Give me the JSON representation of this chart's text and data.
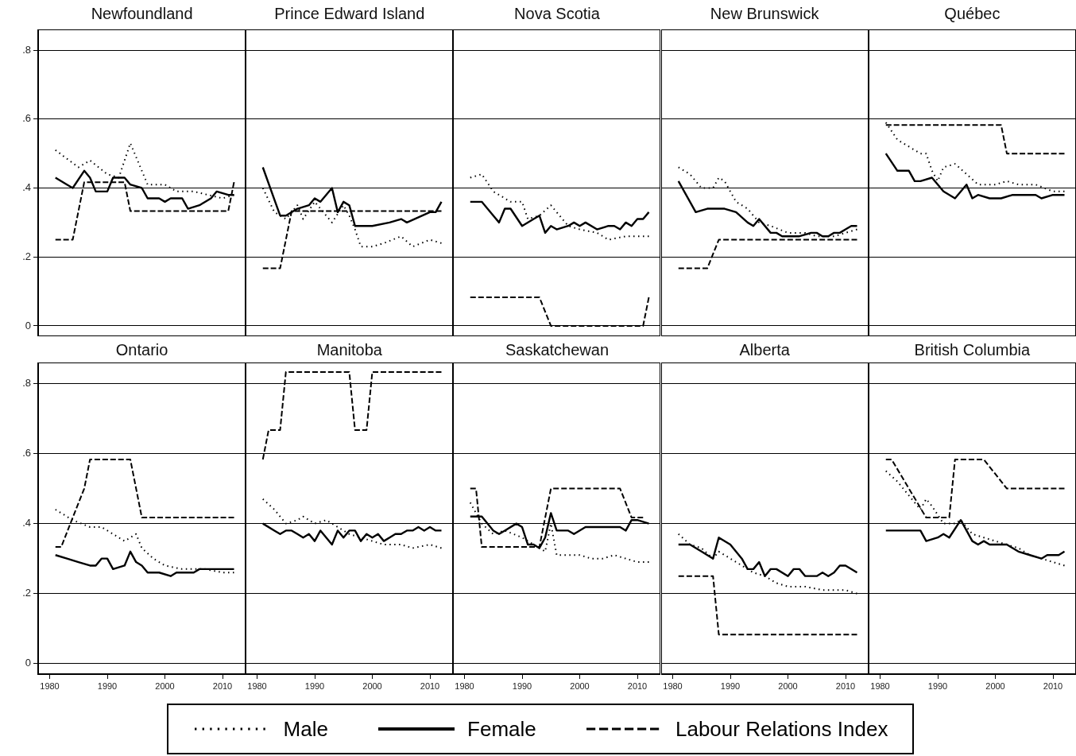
{
  "chart_data": [
    {
      "type": "line",
      "title": "Newfoundland",
      "xlim": [
        1978,
        2014
      ],
      "ylim": [
        -0.03,
        0.86
      ],
      "xticks": [
        1980,
        1990,
        2000,
        2010
      ],
      "yticks": [
        0,
        {
          "value": 0.2,
          "label": ".2"
        },
        {
          "value": 0.4,
          "label": ".4"
        },
        {
          "value": 0.6,
          "label": ".6"
        },
        {
          "value": 0.8,
          "label": ".8"
        }
      ],
      "grid": "y",
      "legend": "bottom",
      "tick_labels": "y",
      "series": [
        {
          "name": "Male",
          "color": "#000000",
          "line_style": "dotted",
          "x": [
            1981,
            1985,
            1987,
            1990,
            1992,
            1994,
            1996,
            1997,
            2000,
            2002,
            2005,
            2010,
            2012
          ],
          "values": [
            0.51,
            0.46,
            0.48,
            0.44,
            0.43,
            0.53,
            0.45,
            0.41,
            0.41,
            0.39,
            0.39,
            0.37,
            0.38
          ]
        },
        {
          "name": "Female",
          "color": "#000000",
          "line_style": "solid",
          "x": [
            1981,
            1983,
            1984,
            1986,
            1987,
            1988,
            1990,
            1991,
            1993,
            1994,
            1996,
            1997,
            1999,
            2000,
            2001,
            2003,
            2004,
            2006,
            2008,
            2009,
            2011,
            2012
          ],
          "values": [
            0.43,
            0.41,
            0.4,
            0.45,
            0.43,
            0.39,
            0.39,
            0.43,
            0.43,
            0.41,
            0.4,
            0.37,
            0.37,
            0.36,
            0.37,
            0.37,
            0.34,
            0.35,
            0.37,
            0.39,
            0.38,
            0.38
          ]
        },
        {
          "name": "Labour Relations Index",
          "color": "#000000",
          "line_style": "dashed",
          "x": [
            1981,
            1984,
            1986,
            1993,
            1994,
            2011,
            2012
          ],
          "values": [
            0.25,
            0.25,
            0.417,
            0.417,
            0.333,
            0.333,
            0.417
          ]
        }
      ]
    },
    {
      "type": "line",
      "title": "Prince Edward Island",
      "xlim": [
        1978,
        2014
      ],
      "ylim": [
        -0.03,
        0.86
      ],
      "xticks": [
        1980,
        1990,
        2000,
        2010
      ],
      "yticks": [
        0,
        0.2,
        0.4,
        0.6,
        0.8
      ],
      "grid": "y",
      "tick_labels": false,
      "series": [
        {
          "color": "#000000",
          "line_style": "dotted",
          "x": [
            1981,
            1983,
            1985,
            1987,
            1988,
            1990,
            1991,
            1993,
            1995,
            1996,
            1997,
            1998,
            2000,
            2002,
            2005,
            2007,
            2010,
            2012
          ],
          "values": [
            0.4,
            0.33,
            0.31,
            0.35,
            0.31,
            0.36,
            0.34,
            0.3,
            0.35,
            0.32,
            0.28,
            0.23,
            0.23,
            0.24,
            0.26,
            0.23,
            0.25,
            0.24
          ]
        },
        {
          "color": "#000000",
          "line_style": "solid",
          "x": [
            1981,
            1984,
            1985,
            1987,
            1989,
            1990,
            1991,
            1993,
            1994,
            1995,
            1996,
            1997,
            1999,
            2000,
            2003,
            2005,
            2006,
            2010,
            2011,
            2012
          ],
          "values": [
            0.46,
            0.32,
            0.32,
            0.34,
            0.35,
            0.37,
            0.36,
            0.4,
            0.33,
            0.36,
            0.35,
            0.29,
            0.29,
            0.29,
            0.3,
            0.31,
            0.3,
            0.33,
            0.33,
            0.36
          ]
        },
        {
          "color": "#000000",
          "line_style": "dashed",
          "x": [
            1981,
            1984,
            1986,
            2012
          ],
          "values": [
            0.167,
            0.167,
            0.333,
            0.333
          ]
        }
      ]
    },
    {
      "type": "line",
      "title": "Nova Scotia",
      "xlim": [
        1978,
        2014
      ],
      "ylim": [
        -0.03,
        0.86
      ],
      "xticks": [
        1980,
        1990,
        2000,
        2010
      ],
      "yticks": [
        0,
        0.2,
        0.4,
        0.6,
        0.8
      ],
      "grid": "y",
      "tick_labels": false,
      "series": [
        {
          "color": "#000000",
          "line_style": "dotted",
          "x": [
            1981,
            1983,
            1985,
            1987,
            1988,
            1990,
            1991,
            1993,
            1995,
            1998,
            2000,
            2003,
            2005,
            2008,
            2010,
            2012
          ],
          "values": [
            0.43,
            0.44,
            0.39,
            0.37,
            0.36,
            0.36,
            0.31,
            0.32,
            0.35,
            0.29,
            0.28,
            0.27,
            0.25,
            0.26,
            0.26,
            0.26
          ]
        },
        {
          "color": "#000000",
          "line_style": "solid",
          "x": [
            1981,
            1983,
            1985,
            1986,
            1987,
            1988,
            1990,
            1992,
            1993,
            1994,
            1995,
            1996,
            1998,
            1999,
            2000,
            2001,
            2003,
            2005,
            2006,
            2007,
            2008,
            2009,
            2010,
            2011,
            2012
          ],
          "values": [
            0.36,
            0.36,
            0.32,
            0.3,
            0.34,
            0.34,
            0.29,
            0.31,
            0.32,
            0.27,
            0.29,
            0.28,
            0.29,
            0.3,
            0.29,
            0.3,
            0.28,
            0.29,
            0.29,
            0.28,
            0.3,
            0.29,
            0.31,
            0.31,
            0.33
          ]
        },
        {
          "color": "#000000",
          "line_style": "dashed",
          "x": [
            1981,
            1993,
            1995,
            2011,
            2012
          ],
          "values": [
            0.083,
            0.083,
            0,
            0,
            0.083
          ]
        }
      ]
    },
    {
      "type": "line",
      "title": "New Brunswick",
      "xlim": [
        1978,
        2014
      ],
      "ylim": [
        -0.03,
        0.86
      ],
      "xticks": [
        1980,
        1990,
        2000,
        2010
      ],
      "yticks": [
        0,
        0.2,
        0.4,
        0.6,
        0.8
      ],
      "grid": "y",
      "tick_labels": false,
      "series": [
        {
          "color": "#000000",
          "line_style": "dotted",
          "x": [
            1981,
            1983,
            1985,
            1987,
            1988,
            1989,
            1991,
            1993,
            1995,
            1997,
            2000,
            2003,
            2005,
            2008,
            2010,
            2012
          ],
          "values": [
            0.46,
            0.44,
            0.4,
            0.4,
            0.43,
            0.42,
            0.36,
            0.34,
            0.3,
            0.29,
            0.27,
            0.27,
            0.26,
            0.26,
            0.27,
            0.28
          ]
        },
        {
          "color": "#000000",
          "line_style": "solid",
          "x": [
            1981,
            1984,
            1986,
            1987,
            1989,
            1991,
            1993,
            1994,
            1995,
            1997,
            1998,
            1999,
            2002,
            2004,
            2005,
            2006,
            2007,
            2008,
            2009,
            2010,
            2011,
            2012
          ],
          "values": [
            0.42,
            0.33,
            0.34,
            0.34,
            0.34,
            0.33,
            0.3,
            0.29,
            0.31,
            0.27,
            0.27,
            0.26,
            0.26,
            0.27,
            0.27,
            0.26,
            0.26,
            0.27,
            0.27,
            0.28,
            0.29,
            0.29
          ]
        },
        {
          "color": "#000000",
          "line_style": "dashed",
          "x": [
            1981,
            1986,
            1988,
            2012
          ],
          "values": [
            0.167,
            0.167,
            0.25,
            0.25
          ]
        }
      ]
    },
    {
      "type": "line",
      "title": "Québec",
      "xlim": [
        1978,
        2014
      ],
      "ylim": [
        -0.03,
        0.86
      ],
      "xticks": [
        1980,
        1990,
        2000,
        2010
      ],
      "yticks": [
        0,
        0.2,
        0.4,
        0.6,
        0.8
      ],
      "grid": "y",
      "tick_labels": false,
      "series": [
        {
          "color": "#000000",
          "line_style": "dotted",
          "x": [
            1981,
            1983,
            1985,
            1987,
            1988,
            1989,
            1990,
            1991,
            1993,
            1995,
            1997,
            2000,
            2002,
            2004,
            2007,
            2010,
            2012
          ],
          "values": [
            0.59,
            0.54,
            0.52,
            0.5,
            0.5,
            0.45,
            0.42,
            0.46,
            0.47,
            0.44,
            0.41,
            0.41,
            0.42,
            0.41,
            0.41,
            0.39,
            0.39
          ]
        },
        {
          "color": "#000000",
          "line_style": "solid",
          "x": [
            1981,
            1983,
            1985,
            1986,
            1987,
            1989,
            1991,
            1993,
            1995,
            1996,
            1997,
            1999,
            2000,
            2001,
            2003,
            2007,
            2008,
            2010,
            2011,
            2012
          ],
          "values": [
            0.5,
            0.45,
            0.45,
            0.42,
            0.42,
            0.43,
            0.39,
            0.37,
            0.41,
            0.37,
            0.38,
            0.37,
            0.37,
            0.37,
            0.38,
            0.38,
            0.37,
            0.38,
            0.38,
            0.38
          ]
        },
        {
          "color": "#000000",
          "line_style": "dashed",
          "x": [
            1981,
            2001,
            2002,
            2012
          ],
          "values": [
            0.583,
            0.583,
            0.5,
            0.5
          ]
        }
      ]
    },
    {
      "type": "line",
      "title": "Ontario",
      "xlim": [
        1978,
        2014
      ],
      "ylim": [
        -0.03,
        0.86
      ],
      "xticks": [
        1980,
        1990,
        2000,
        2010
      ],
      "yticks": [
        0,
        {
          "value": 0.2,
          "label": ".2"
        },
        {
          "value": 0.4,
          "label": ".4"
        },
        {
          "value": 0.6,
          "label": ".6"
        },
        {
          "value": 0.8,
          "label": ".8"
        }
      ],
      "grid": "y",
      "series": [
        {
          "color": "#000000",
          "line_style": "dotted",
          "x": [
            1981,
            1984,
            1987,
            1989,
            1991,
            1993,
            1995,
            1996,
            1998,
            2000,
            2003,
            2007,
            2010,
            2012
          ],
          "values": [
            0.44,
            0.41,
            0.39,
            0.39,
            0.37,
            0.35,
            0.37,
            0.33,
            0.3,
            0.28,
            0.27,
            0.27,
            0.26,
            0.26
          ]
        },
        {
          "color": "#000000",
          "line_style": "solid",
          "x": [
            1981,
            1983,
            1985,
            1987,
            1988,
            1989,
            1990,
            1991,
            1993,
            1994,
            1995,
            1996,
            1997,
            1999,
            2001,
            2002,
            2005,
            2006,
            2008,
            2010,
            2012
          ],
          "values": [
            0.31,
            0.3,
            0.29,
            0.28,
            0.28,
            0.3,
            0.3,
            0.27,
            0.28,
            0.32,
            0.29,
            0.28,
            0.26,
            0.26,
            0.25,
            0.26,
            0.26,
            0.27,
            0.27,
            0.27,
            0.27
          ]
        },
        {
          "color": "#000000",
          "line_style": "dashed",
          "x": [
            1981,
            1982,
            1984,
            1986,
            1987,
            1994,
            1995,
            1996,
            2012
          ],
          "values": [
            0.333,
            0.333,
            0.417,
            0.5,
            0.583,
            0.583,
            0.5,
            0.417,
            0.417
          ]
        }
      ]
    },
    {
      "type": "line",
      "title": "Manitoba",
      "xlim": [
        1978,
        2014
      ],
      "ylim": [
        -0.03,
        0.86
      ],
      "xticks": [
        1980,
        1990,
        2000,
        2010
      ],
      "yticks": [
        0,
        0.2,
        0.4,
        0.6,
        0.8
      ],
      "grid": "y",
      "tick_labels": "x",
      "series": [
        {
          "color": "#000000",
          "line_style": "dotted",
          "x": [
            1981,
            1983,
            1985,
            1987,
            1988,
            1990,
            1992,
            1994,
            1996,
            1998,
            2000,
            2002,
            2005,
            2007,
            2010,
            2012
          ],
          "values": [
            0.47,
            0.44,
            0.4,
            0.41,
            0.42,
            0.4,
            0.41,
            0.39,
            0.37,
            0.36,
            0.35,
            0.34,
            0.34,
            0.33,
            0.34,
            0.33
          ]
        },
        {
          "color": "#000000",
          "line_style": "solid",
          "x": [
            1981,
            1983,
            1984,
            1985,
            1986,
            1987,
            1988,
            1989,
            1990,
            1991,
            1992,
            1993,
            1994,
            1995,
            1996,
            1997,
            1998,
            1999,
            2000,
            2001,
            2002,
            2003,
            2004,
            2005,
            2006,
            2007,
            2008,
            2009,
            2010,
            2011,
            2012
          ],
          "values": [
            0.4,
            0.38,
            0.37,
            0.38,
            0.38,
            0.37,
            0.36,
            0.37,
            0.35,
            0.38,
            0.36,
            0.34,
            0.38,
            0.36,
            0.38,
            0.38,
            0.35,
            0.37,
            0.36,
            0.37,
            0.35,
            0.36,
            0.37,
            0.37,
            0.38,
            0.38,
            0.39,
            0.38,
            0.39,
            0.38,
            0.38
          ]
        },
        {
          "color": "#000000",
          "line_style": "dashed",
          "x": [
            1981,
            1982,
            1984,
            1985,
            1996,
            1997,
            1999,
            2000,
            2012
          ],
          "values": [
            0.583,
            0.667,
            0.667,
            0.833,
            0.833,
            0.667,
            0.667,
            0.833,
            0.833
          ]
        }
      ]
    },
    {
      "type": "line",
      "title": "Saskatchewan",
      "xlim": [
        1978,
        2014
      ],
      "ylim": [
        -0.03,
        0.86
      ],
      "xticks": [
        1980,
        1990,
        2000,
        2010
      ],
      "yticks": [
        0,
        0.2,
        0.4,
        0.6,
        0.8
      ],
      "grid": "y",
      "tick_labels": "x",
      "series": [
        {
          "color": "#000000",
          "line_style": "dotted",
          "x": [
            1981,
            1983,
            1985,
            1987,
            1990,
            1992,
            1994,
            1995,
            1996,
            1998,
            2000,
            2002,
            2004,
            2006,
            2008,
            2010,
            2012
          ],
          "values": [
            0.46,
            0.4,
            0.37,
            0.38,
            0.36,
            0.34,
            0.32,
            0.4,
            0.31,
            0.31,
            0.31,
            0.3,
            0.3,
            0.31,
            0.3,
            0.29,
            0.29
          ]
        },
        {
          "color": "#000000",
          "line_style": "solid",
          "x": [
            1981,
            1983,
            1985,
            1986,
            1987,
            1989,
            1990,
            1991,
            1992,
            1993,
            1994,
            1995,
            1996,
            1998,
            1999,
            2001,
            2003,
            2005,
            2007,
            2008,
            2009,
            2010,
            2012
          ],
          "values": [
            0.42,
            0.42,
            0.38,
            0.37,
            0.38,
            0.4,
            0.39,
            0.34,
            0.34,
            0.33,
            0.36,
            0.43,
            0.38,
            0.38,
            0.37,
            0.39,
            0.39,
            0.39,
            0.39,
            0.38,
            0.41,
            0.41,
            0.4
          ]
        },
        {
          "color": "#000000",
          "line_style": "dashed",
          "x": [
            1981,
            1982,
            1983,
            1993,
            1995,
            2007,
            2009,
            2011
          ],
          "values": [
            0.5,
            0.5,
            0.333,
            0.333,
            0.5,
            0.5,
            0.417,
            0.417
          ]
        }
      ]
    },
    {
      "type": "line",
      "title": "Alberta",
      "xlim": [
        1978,
        2014
      ],
      "ylim": [
        -0.03,
        0.86
      ],
      "xticks": [
        1980,
        1990,
        2000,
        2010
      ],
      "yticks": [
        0,
        0.2,
        0.4,
        0.6,
        0.8
      ],
      "grid": "y",
      "tick_labels": "x",
      "series": [
        {
          "color": "#000000",
          "line_style": "dotted",
          "x": [
            1981,
            1983,
            1985,
            1987,
            1988,
            1990,
            1992,
            1994,
            1996,
            1998,
            2000,
            2003,
            2006,
            2010,
            2012
          ],
          "values": [
            0.37,
            0.34,
            0.33,
            0.3,
            0.32,
            0.3,
            0.28,
            0.26,
            0.25,
            0.23,
            0.22,
            0.22,
            0.21,
            0.21,
            0.2
          ]
        },
        {
          "color": "#000000",
          "line_style": "solid",
          "x": [
            1981,
            1983,
            1985,
            1987,
            1988,
            1990,
            1992,
            1993,
            1994,
            1995,
            1996,
            1997,
            1998,
            2000,
            2001,
            2002,
            2003,
            2005,
            2006,
            2007,
            2008,
            2009,
            2010,
            2012
          ],
          "values": [
            0.34,
            0.34,
            0.32,
            0.3,
            0.36,
            0.34,
            0.3,
            0.27,
            0.27,
            0.29,
            0.25,
            0.27,
            0.27,
            0.25,
            0.27,
            0.27,
            0.25,
            0.25,
            0.26,
            0.25,
            0.26,
            0.28,
            0.28,
            0.26
          ]
        },
        {
          "color": "#000000",
          "line_style": "dashed",
          "x": [
            1981,
            1987,
            1988,
            2012
          ],
          "values": [
            0.25,
            0.25,
            0.083,
            0.083
          ]
        }
      ]
    },
    {
      "type": "line",
      "title": "British Columbia",
      "xlim": [
        1978,
        2014
      ],
      "ylim": [
        -0.03,
        0.86
      ],
      "xticks": [
        1980,
        1990,
        2000,
        2010
      ],
      "yticks": [
        0,
        0.2,
        0.4,
        0.6,
        0.8
      ],
      "grid": "y",
      "tick_labels": "x",
      "series": [
        {
          "color": "#000000",
          "line_style": "dotted",
          "x": [
            1981,
            1983,
            1985,
            1987,
            1988,
            1989,
            1991,
            1993,
            1994,
            1996,
            1998,
            2000,
            2002,
            2004,
            2006,
            2008,
            2010,
            2012
          ],
          "values": [
            0.55,
            0.52,
            0.48,
            0.44,
            0.47,
            0.45,
            0.4,
            0.4,
            0.41,
            0.37,
            0.36,
            0.35,
            0.34,
            0.33,
            0.31,
            0.3,
            0.29,
            0.28
          ]
        },
        {
          "color": "#000000",
          "line_style": "solid",
          "x": [
            1981,
            1987,
            1988,
            1990,
            1991,
            1992,
            1994,
            1996,
            1997,
            1998,
            1999,
            2000,
            2002,
            2004,
            2006,
            2008,
            2009,
            2011,
            2012
          ],
          "values": [
            0.38,
            0.38,
            0.35,
            0.36,
            0.37,
            0.36,
            0.41,
            0.35,
            0.34,
            0.35,
            0.34,
            0.34,
            0.34,
            0.32,
            0.31,
            0.3,
            0.31,
            0.31,
            0.32
          ]
        },
        {
          "color": "#000000",
          "line_style": "dashed",
          "x": [
            1981,
            1982,
            1988,
            1992,
            1993,
            1998,
            2002,
            2012
          ],
          "values": [
            0.583,
            0.583,
            0.417,
            0.417,
            0.583,
            0.583,
            0.5,
            0.5
          ]
        }
      ]
    }
  ]
}
